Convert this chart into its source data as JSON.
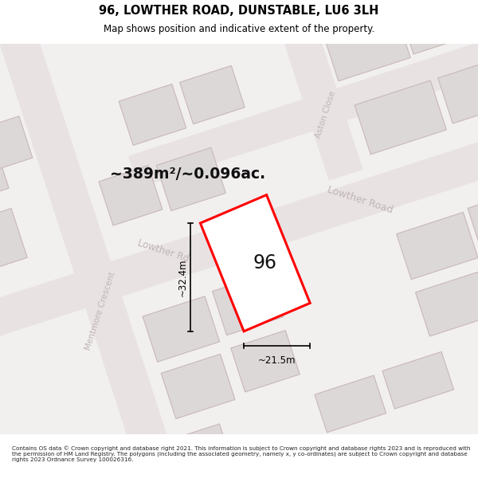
{
  "title": "96, LOWTHER ROAD, DUNSTABLE, LU6 3LH",
  "subtitle": "Map shows position and indicative extent of the property.",
  "footer": "Contains OS data © Crown copyright and database right 2021. This information is subject to Crown copyright and database rights 2023 and is reproduced with the permission of HM Land Registry. The polygons (including the associated geometry, namely x, y co-ordinates) are subject to Crown copyright and database rights 2023 Ordnance Survey 100026316.",
  "area_text": "~389m²/~0.096ac.",
  "label_96": "96",
  "dim_height": "~32.4m",
  "dim_width": "~21.5m",
  "map_bg": "#f2efef",
  "road_fill": "#e8e2e2",
  "building_fill": "#ddd8d8",
  "building_edge": "#c8b8b8",
  "highlight_color": "#ff0000",
  "highlight_fill": "#ffffff",
  "label_color": "#c0b5b5",
  "title_color": "#000000",
  "footer_color": "#222222",
  "dim_color": "#000000",
  "area_color": "#111111"
}
